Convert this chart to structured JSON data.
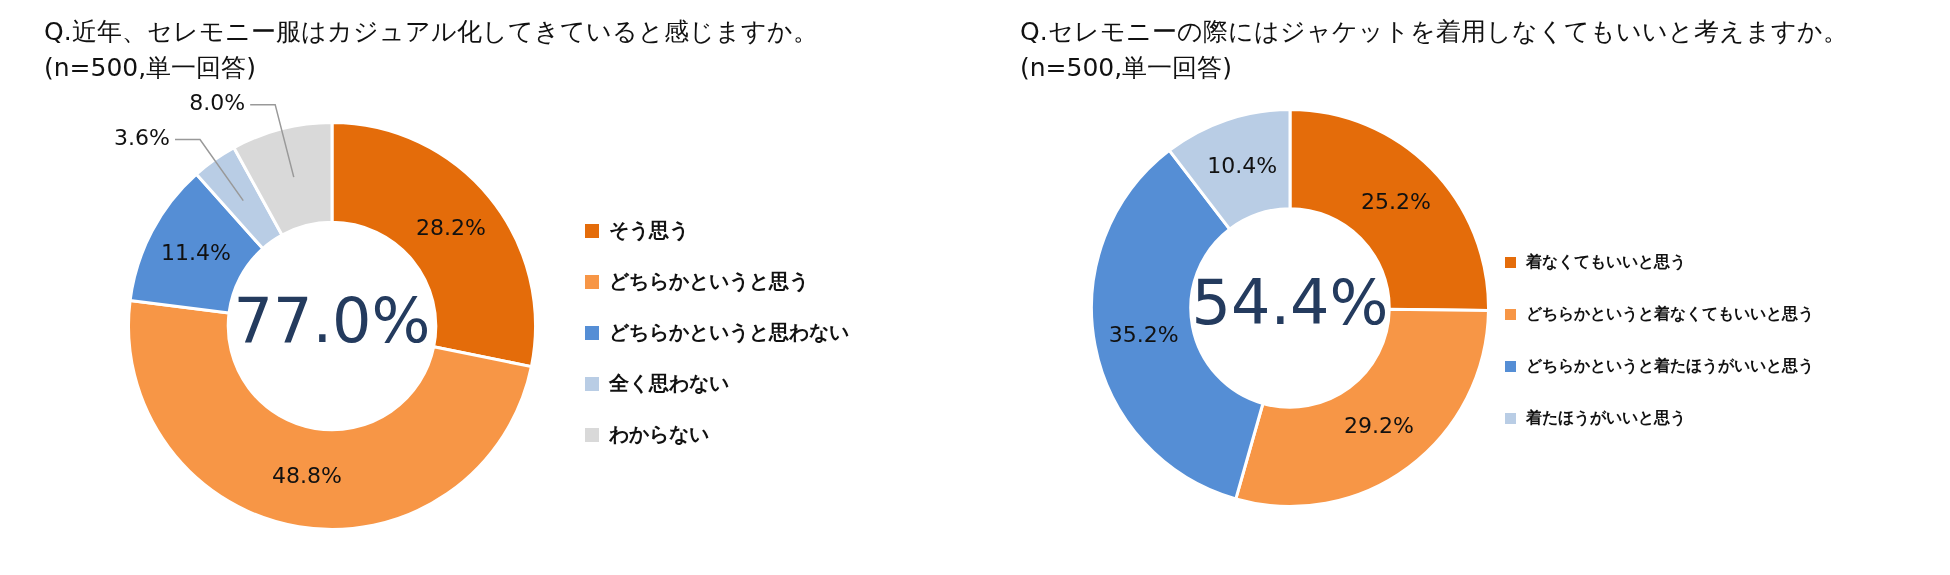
{
  "chart_data": [
    {
      "type": "donut",
      "title": "Q.近年、セレモニー服はカジュアル化してきていると感じますか。",
      "subtitle": "(n=500,単一回答)",
      "categories": [
        "そう思う",
        "どちらかというと思う",
        "どちらかというと思わない",
        "全く思わない",
        "わからない"
      ],
      "values": [
        28.2,
        48.8,
        11.4,
        3.6,
        8.0
      ],
      "colors": [
        "#e46c0a",
        "#f79646",
        "#558ed5",
        "#b9cde5",
        "#d9d9d9"
      ],
      "value_labels": [
        "28.2%",
        "48.8%",
        "11.4%",
        "3.6%",
        "8.0%"
      ],
      "annotations": [
        "77.0%"
      ],
      "legend": "right"
    },
    {
      "type": "donut",
      "title": "Q.セレモニーの際にはジャケットを着用しなくてもいいと考えますか。",
      "subtitle": "(n=500,単一回答)",
      "categories": [
        "着なくてもいいと思う",
        "どちらかというと着なくてもいいと思う",
        "どちらかというと着たほうがいいと思う",
        "着たほうがいいと思う"
      ],
      "values": [
        25.2,
        29.2,
        35.2,
        10.4
      ],
      "colors": [
        "#e46c0a",
        "#f79646",
        "#558ed5",
        "#b9cde5"
      ],
      "value_labels": [
        "25.2%",
        "29.2%",
        "35.2%",
        "10.4%"
      ],
      "annotations": [
        "54.4%"
      ],
      "legend": "right"
    }
  ]
}
